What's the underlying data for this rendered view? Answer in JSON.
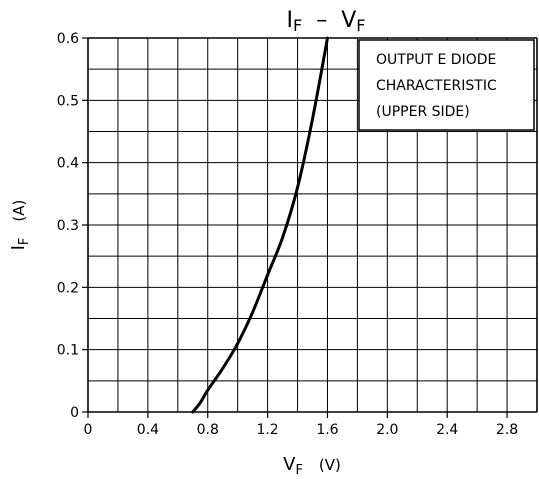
{
  "chart_data": {
    "type": "line",
    "title": {
      "main": "I",
      "main_sub": "F",
      "dash": "–",
      "rhs": "V",
      "rhs_sub": "F"
    },
    "xlabel": {
      "main": "V",
      "sub": "F",
      "unit": "(V)"
    },
    "ylabel": {
      "main": "I",
      "sub": "F",
      "unit": "(A)"
    },
    "xlim": [
      0,
      3.0
    ],
    "ylim": [
      0,
      0.6
    ],
    "xticks": [
      0,
      0.4,
      0.8,
      1.2,
      1.6,
      2.0,
      2.4,
      2.8
    ],
    "xtick_labels": [
      "0",
      "0.4",
      "0.8",
      "1.2",
      "1.6",
      "2.0",
      "2.4",
      "2.8"
    ],
    "yticks": [
      0,
      0.1,
      0.2,
      0.3,
      0.4,
      0.5,
      0.6
    ],
    "ytick_labels": [
      "0",
      "0.1",
      "0.2",
      "0.3",
      "0.4",
      "0.5",
      "0.6"
    ],
    "grid": true,
    "grid_x_step": 0.2,
    "grid_y_step": 0.05,
    "annotation": [
      "OUTPUT E DIODE",
      "CHARACTERISTIC",
      "(UPPER SIDE)"
    ],
    "series": [
      {
        "color": "#000000",
        "x": [
          0.7,
          0.75,
          0.8,
          0.9,
          1.0,
          1.1,
          1.2,
          1.3,
          1.4,
          1.5,
          1.6
        ],
        "y": [
          0.0,
          0.015,
          0.035,
          0.07,
          0.11,
          0.16,
          0.22,
          0.28,
          0.36,
          0.47,
          0.6
        ]
      }
    ]
  }
}
